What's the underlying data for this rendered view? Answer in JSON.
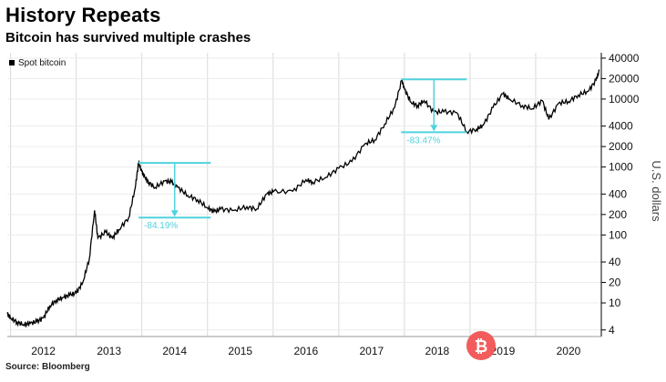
{
  "header": {
    "title": "History Repeats",
    "subtitle": "Bitcoin has survived multiple crashes",
    "source": "Source: Bloomberg"
  },
  "colors": {
    "series": "#000000",
    "annotation": "#4fd3de",
    "grid": "#d9d9d9",
    "logo": "#f25c5c"
  },
  "icons": {
    "logo": "bitcoin-logo-icon"
  },
  "chart_data": {
    "type": "line",
    "scale": "log",
    "title": "History Repeats",
    "subtitle": "Bitcoin has survived multiple crashes",
    "ylabel": "U.S. dollars",
    "xlabel": "",
    "legend": "top-left",
    "ylim": [
      3.2,
      48000
    ],
    "y_ticks": [
      40000,
      20000,
      10000,
      4000,
      2000,
      1000,
      400,
      200,
      100,
      40,
      20,
      10,
      4
    ],
    "x_years": [
      "2012",
      "2013",
      "2014",
      "2015",
      "2016",
      "2017",
      "2018",
      "2019",
      "2020"
    ],
    "series": [
      {
        "name": "Spot bitcoin",
        "points": [
          [
            2011.95,
            7
          ],
          [
            2012.0,
            6
          ],
          [
            2012.1,
            5.2
          ],
          [
            2012.2,
            4.8
          ],
          [
            2012.3,
            5
          ],
          [
            2012.4,
            5.3
          ],
          [
            2012.5,
            6
          ],
          [
            2012.6,
            9
          ],
          [
            2012.7,
            11
          ],
          [
            2012.8,
            12
          ],
          [
            2012.9,
            13
          ],
          [
            2013.0,
            14
          ],
          [
            2013.1,
            20
          ],
          [
            2013.2,
            45
          ],
          [
            2013.28,
            230
          ],
          [
            2013.33,
            90
          ],
          [
            2013.45,
            110
          ],
          [
            2013.55,
            90
          ],
          [
            2013.65,
            120
          ],
          [
            2013.8,
            180
          ],
          [
            2013.9,
            500
          ],
          [
            2013.95,
            1150
          ],
          [
            2014.0,
            850
          ],
          [
            2014.05,
            700
          ],
          [
            2014.1,
            600
          ],
          [
            2014.2,
            500
          ],
          [
            2014.35,
            620
          ],
          [
            2014.45,
            600
          ],
          [
            2014.55,
            500
          ],
          [
            2014.7,
            380
          ],
          [
            2014.85,
            330
          ],
          [
            2015.0,
            250
          ],
          [
            2015.1,
            220
          ],
          [
            2015.2,
            240
          ],
          [
            2015.4,
            230
          ],
          [
            2015.6,
            260
          ],
          [
            2015.75,
            240
          ],
          [
            2015.9,
            400
          ],
          [
            2016.0,
            430
          ],
          [
            2016.3,
            440
          ],
          [
            2016.5,
            650
          ],
          [
            2016.6,
            600
          ],
          [
            2016.8,
            700
          ],
          [
            2017.0,
            960
          ],
          [
            2017.2,
            1200
          ],
          [
            2017.4,
            2200
          ],
          [
            2017.55,
            2500
          ],
          [
            2017.7,
            4300
          ],
          [
            2017.85,
            7500
          ],
          [
            2017.96,
            19000
          ],
          [
            2018.0,
            14000
          ],
          [
            2018.1,
            9000
          ],
          [
            2018.2,
            8000
          ],
          [
            2018.3,
            9500
          ],
          [
            2018.45,
            6400
          ],
          [
            2018.6,
            6500
          ],
          [
            2018.8,
            6300
          ],
          [
            2018.95,
            3300
          ],
          [
            2019.1,
            3600
          ],
          [
            2019.2,
            4100
          ],
          [
            2019.35,
            7500
          ],
          [
            2019.5,
            12000
          ],
          [
            2019.6,
            10000
          ],
          [
            2019.8,
            8000
          ],
          [
            2019.95,
            7200
          ],
          [
            2020.1,
            9500
          ],
          [
            2020.2,
            5000
          ],
          [
            2020.35,
            8700
          ],
          [
            2020.5,
            9200
          ],
          [
            2020.65,
            11500
          ],
          [
            2020.8,
            13000
          ],
          [
            2020.92,
            19000
          ],
          [
            2020.97,
            26000
          ]
        ]
      }
    ],
    "annotations": [
      {
        "label": "-84.19%",
        "x_from": 2013.95,
        "x_to": 2015.05,
        "high": 1150,
        "low": 180
      },
      {
        "label": "-83.47%",
        "x_from": 2017.95,
        "x_to": 2018.95,
        "high": 19500,
        "low": 3250
      }
    ]
  }
}
